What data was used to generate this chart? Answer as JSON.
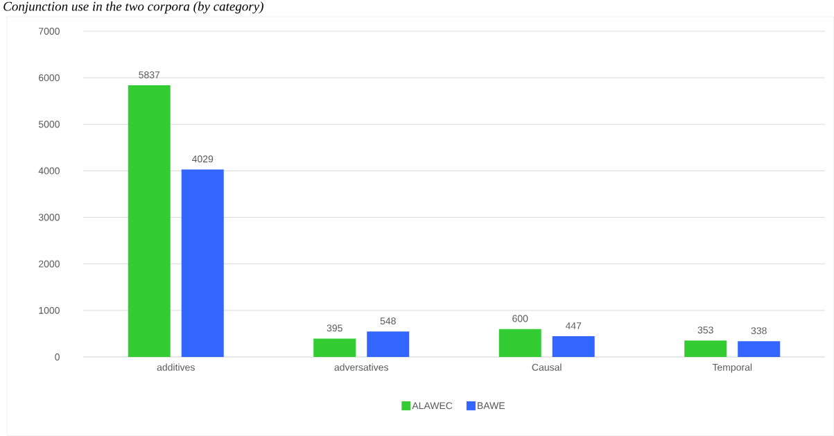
{
  "chart_data": {
    "type": "bar",
    "title": "Conjunction use in the two corpora (by category)",
    "categories": [
      "additives",
      "adversatives",
      "Causal",
      "Temporal"
    ],
    "series": [
      {
        "name": "ALAWEC",
        "color": "#33cc33",
        "values": [
          5837,
          395,
          600,
          353
        ]
      },
      {
        "name": "BAWE",
        "color": "#3366ff",
        "values": [
          4029,
          548,
          447,
          338
        ]
      }
    ],
    "ylim": [
      0,
      7000
    ],
    "yticks": [
      0,
      1000,
      2000,
      3000,
      4000,
      5000,
      6000,
      7000
    ],
    "grid": "y",
    "legend": "bottom",
    "data_labels": true
  }
}
